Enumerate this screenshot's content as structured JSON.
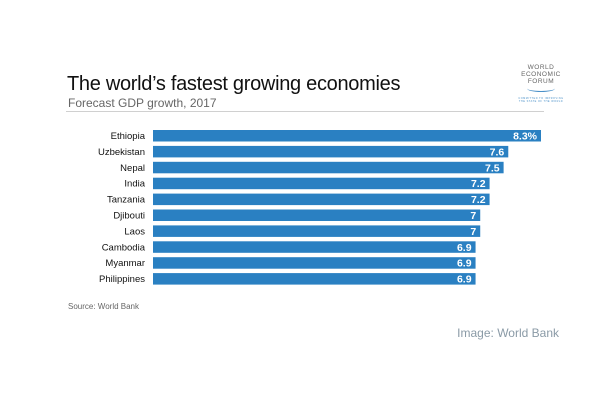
{
  "chart_data": {
    "type": "bar",
    "orientation": "horizontal",
    "title": "The world’s fastest growing economies",
    "subtitle": "Forecast GDP growth, 2017",
    "categories": [
      "Ethiopia",
      "Uzbekistan",
      "Nepal",
      "India",
      "Tanzania",
      "Djibouti",
      "Laos",
      "Cambodia",
      "Myanmar",
      "Philippines"
    ],
    "values": [
      8.3,
      7.6,
      7.5,
      7.2,
      7.2,
      7,
      7,
      6.9,
      6.9,
      6.9
    ],
    "data_labels": [
      "8.3%",
      "7.6",
      "7.5",
      "7.2",
      "7.2",
      "7",
      "7",
      "6.9",
      "6.9",
      "6.9"
    ],
    "xlim": [
      0,
      8.3
    ],
    "grid": false,
    "bar_color": "#2a80c2",
    "label_color": "#ffffff"
  },
  "source": "Source: World Bank",
  "credit": "Image: World Bank",
  "logo": {
    "line1": "WORLD",
    "line2": "ECONOMIC",
    "line3": "FORUM",
    "tagline": "COMMITTED TO IMPROVING THE STATE OF THE WORLD"
  }
}
